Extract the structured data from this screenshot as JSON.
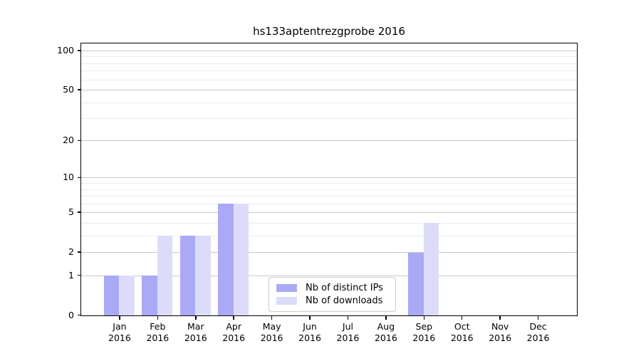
{
  "chart_data": {
    "type": "bar",
    "title": "hs133aptentrezgprobe 2016",
    "categories": [
      [
        "Jan",
        "2016"
      ],
      [
        "Feb",
        "2016"
      ],
      [
        "Mar",
        "2016"
      ],
      [
        "Apr",
        "2016"
      ],
      [
        "May",
        "2016"
      ],
      [
        "Jun",
        "2016"
      ],
      [
        "Jul",
        "2016"
      ],
      [
        "Aug",
        "2016"
      ],
      [
        "Sep",
        "2016"
      ],
      [
        "Oct",
        "2016"
      ],
      [
        "Nov",
        "2016"
      ],
      [
        "Dec",
        "2016"
      ]
    ],
    "series": [
      {
        "name": "Nb of distinct IPs",
        "color": "#a9a9f5",
        "values": [
          1,
          1,
          3,
          6,
          0,
          0,
          0,
          0,
          2,
          0,
          0,
          0
        ]
      },
      {
        "name": "Nb of downloads",
        "color": "#dcdcfa",
        "values": [
          1,
          3,
          3,
          6,
          0,
          0,
          0,
          0,
          4,
          0,
          0,
          0
        ]
      }
    ],
    "y_axis": {
      "scale": "log1p",
      "tick_values": [
        0,
        1,
        2,
        5,
        10,
        20,
        50,
        100
      ],
      "minor_gridline_values": [
        3,
        4,
        6,
        7,
        8,
        9,
        30,
        40,
        60,
        70,
        80,
        90
      ],
      "range_max": 117
    },
    "legend_position": "lower-center",
    "grid": true,
    "colors": {
      "major_gridline": "#c9c9c9",
      "minor_gridline": "#ebebeb",
      "axis": "#000000",
      "background": "#ffffff"
    }
  }
}
